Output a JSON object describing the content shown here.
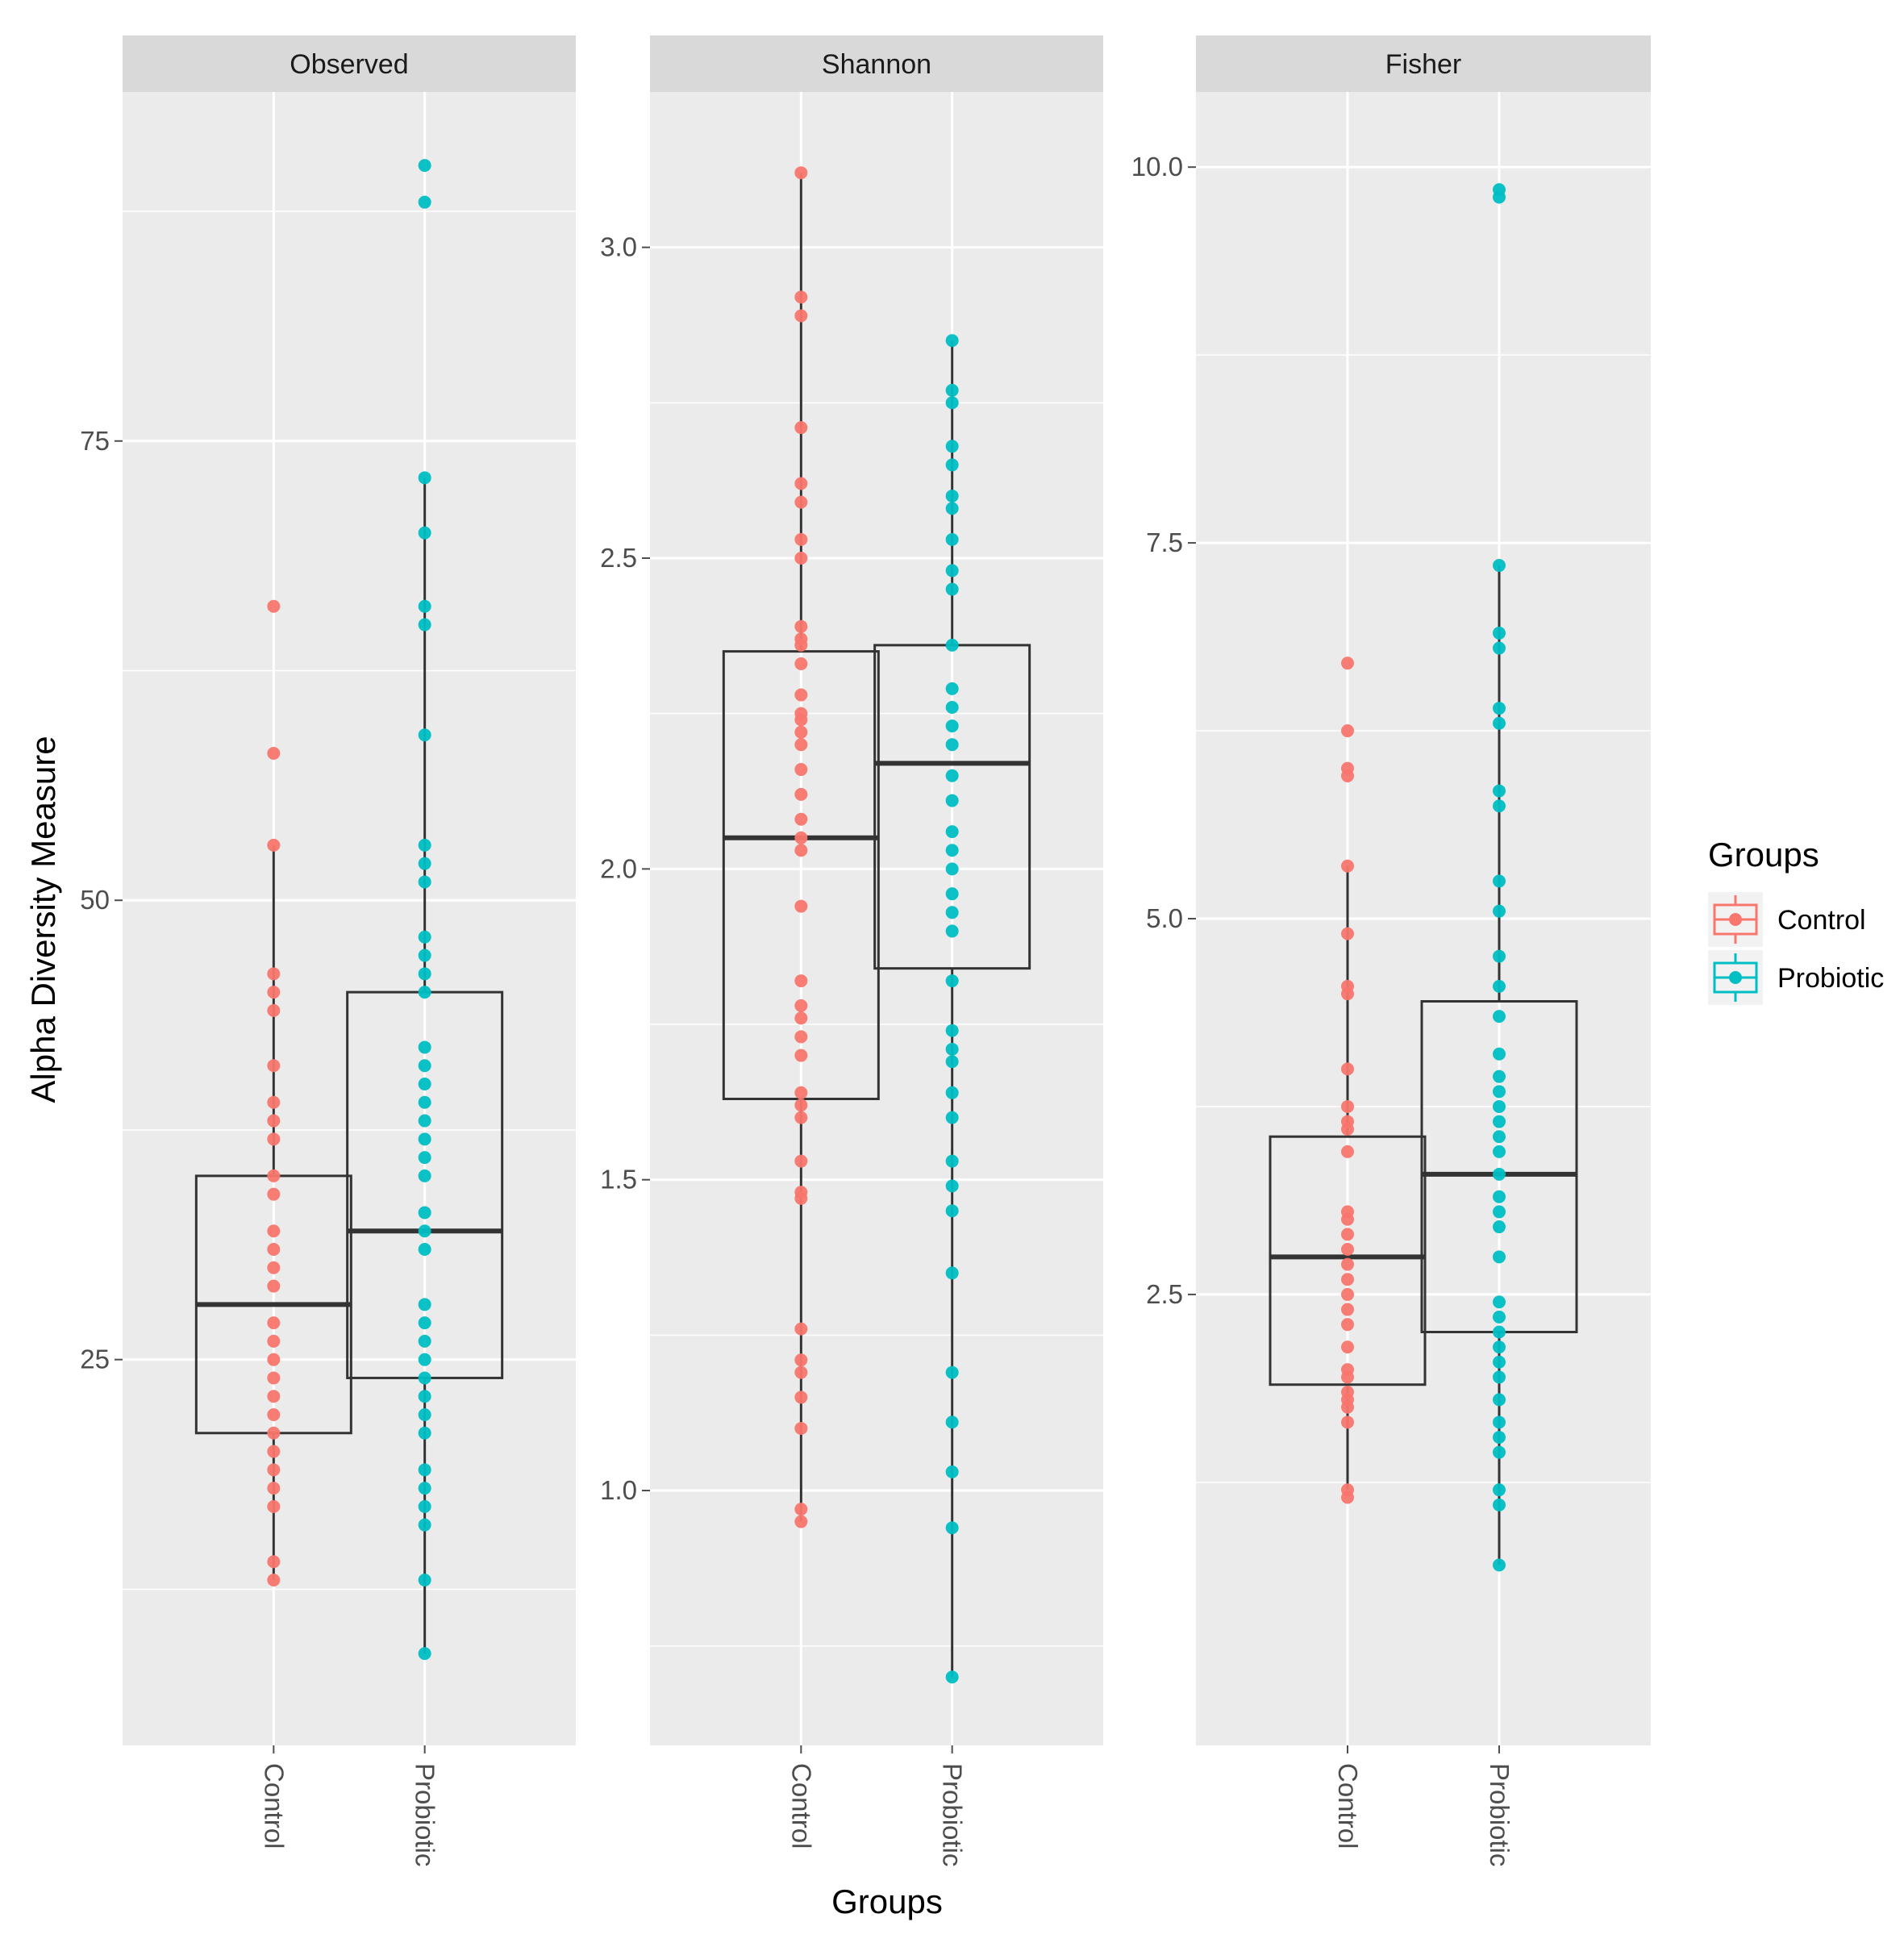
{
  "chart_data": {
    "type": "box",
    "ylabel": "Alpha Diversity Measure",
    "xlabel": "Groups",
    "categories": [
      "Control",
      "Probiotic"
    ],
    "legend": {
      "title": "Groups",
      "placement": "right",
      "items": [
        {
          "label": "Control",
          "color": "#F8766D"
        },
        {
          "label": "Probiotic",
          "color": "#00BFC4"
        }
      ]
    },
    "colors": {
      "Control": "#F8766D",
      "Probiotic": "#00BFC4"
    },
    "facets": [
      {
        "title": "Observed",
        "ylim": [
          4,
          94
        ],
        "yticks": [
          25,
          50,
          75
        ],
        "ytick_labels": [
          "25",
          "50",
          "75"
        ],
        "boxes": [
          {
            "group": "Control",
            "whisker_low": 13,
            "q1": 21,
            "median": 28,
            "q3": 35,
            "whisker_high": 53,
            "points": [
              13,
              14,
              17,
              18,
              19,
              20,
              21,
              22,
              23,
              24,
              25,
              26,
              27,
              29,
              30,
              31,
              32,
              34,
              35,
              37,
              38,
              39,
              41,
              44,
              45,
              46,
              53,
              58,
              66
            ]
          },
          {
            "group": "Probiotic",
            "whisker_low": 9,
            "q1": 24,
            "median": 32,
            "q3": 45,
            "whisker_high": 73,
            "points": [
              9,
              13,
              16,
              17,
              18,
              19,
              21,
              22,
              23,
              24,
              25,
              26,
              27,
              28,
              31,
              32,
              33,
              35,
              36,
              37,
              38,
              39,
              40,
              41,
              42,
              45,
              46,
              47,
              48,
              51,
              52,
              53,
              59,
              65,
              66,
              70,
              73,
              88,
              90
            ]
          }
        ]
      },
      {
        "title": "Shannon",
        "ylim": [
          0.59,
          3.25
        ],
        "yticks": [
          1.0,
          1.5,
          2.0,
          2.5,
          3.0
        ],
        "ytick_labels": [
          "1.0",
          "1.5",
          "2.0",
          "2.5",
          "3.0"
        ],
        "boxes": [
          {
            "group": "Control",
            "whisker_low": 0.95,
            "q1": 1.63,
            "median": 2.05,
            "q3": 2.35,
            "whisker_high": 3.12,
            "points": [
              0.95,
              0.97,
              1.1,
              1.15,
              1.19,
              1.21,
              1.26,
              1.47,
              1.48,
              1.53,
              1.6,
              1.62,
              1.64,
              1.7,
              1.73,
              1.76,
              1.78,
              1.82,
              1.94,
              2.03,
              2.05,
              2.08,
              2.12,
              2.16,
              2.2,
              2.22,
              2.24,
              2.25,
              2.28,
              2.33,
              2.36,
              2.37,
              2.39,
              2.5,
              2.53,
              2.59,
              2.62,
              2.71,
              2.89,
              2.92,
              3.12
            ]
          },
          {
            "group": "Probiotic",
            "whisker_low": 0.7,
            "q1": 1.84,
            "median": 2.17,
            "q3": 2.36,
            "whisker_high": 2.85,
            "points": [
              0.7,
              0.94,
              1.03,
              1.11,
              1.19,
              1.35,
              1.45,
              1.49,
              1.53,
              1.6,
              1.64,
              1.69,
              1.71,
              1.74,
              1.82,
              1.9,
              1.93,
              1.96,
              2.0,
              2.03,
              2.06,
              2.11,
              2.15,
              2.2,
              2.23,
              2.26,
              2.29,
              2.36,
              2.45,
              2.48,
              2.53,
              2.58,
              2.6,
              2.65,
              2.68,
              2.75,
              2.77,
              2.85
            ]
          }
        ]
      },
      {
        "title": "Fisher",
        "ylim": [
          -0.5,
          10.5
        ],
        "yticks": [
          2.5,
          5.0,
          7.5,
          10.0
        ],
        "ytick_labels": [
          "2.5",
          "5.0",
          "7.5",
          "10.0"
        ],
        "boxes": [
          {
            "group": "Control",
            "whisker_low": 1.2,
            "q1": 1.9,
            "median": 2.75,
            "q3": 3.55,
            "whisker_high": 5.35,
            "points": [
              1.15,
              1.2,
              1.65,
              1.75,
              1.8,
              1.85,
              1.95,
              2.0,
              2.15,
              2.3,
              2.4,
              2.5,
              2.6,
              2.7,
              2.8,
              2.9,
              3.0,
              3.05,
              3.45,
              3.6,
              3.65,
              3.75,
              4.0,
              4.5,
              4.55,
              4.9,
              5.35,
              5.95,
              6.0,
              6.25,
              6.7
            ]
          },
          {
            "group": "Probiotic",
            "whisker_low": 0.7,
            "q1": 2.25,
            "median": 3.3,
            "q3": 4.45,
            "whisker_high": 7.35,
            "points": [
              0.7,
              1.1,
              1.2,
              1.45,
              1.55,
              1.65,
              1.8,
              1.95,
              2.05,
              2.15,
              2.25,
              2.35,
              2.45,
              2.75,
              2.95,
              3.05,
              3.15,
              3.3,
              3.45,
              3.55,
              3.65,
              3.75,
              3.85,
              3.95,
              4.1,
              4.35,
              4.55,
              4.75,
              5.05,
              5.25,
              5.75,
              5.85,
              6.3,
              6.4,
              6.8,
              6.9,
              7.35,
              9.8,
              9.85
            ]
          }
        ]
      }
    ]
  }
}
